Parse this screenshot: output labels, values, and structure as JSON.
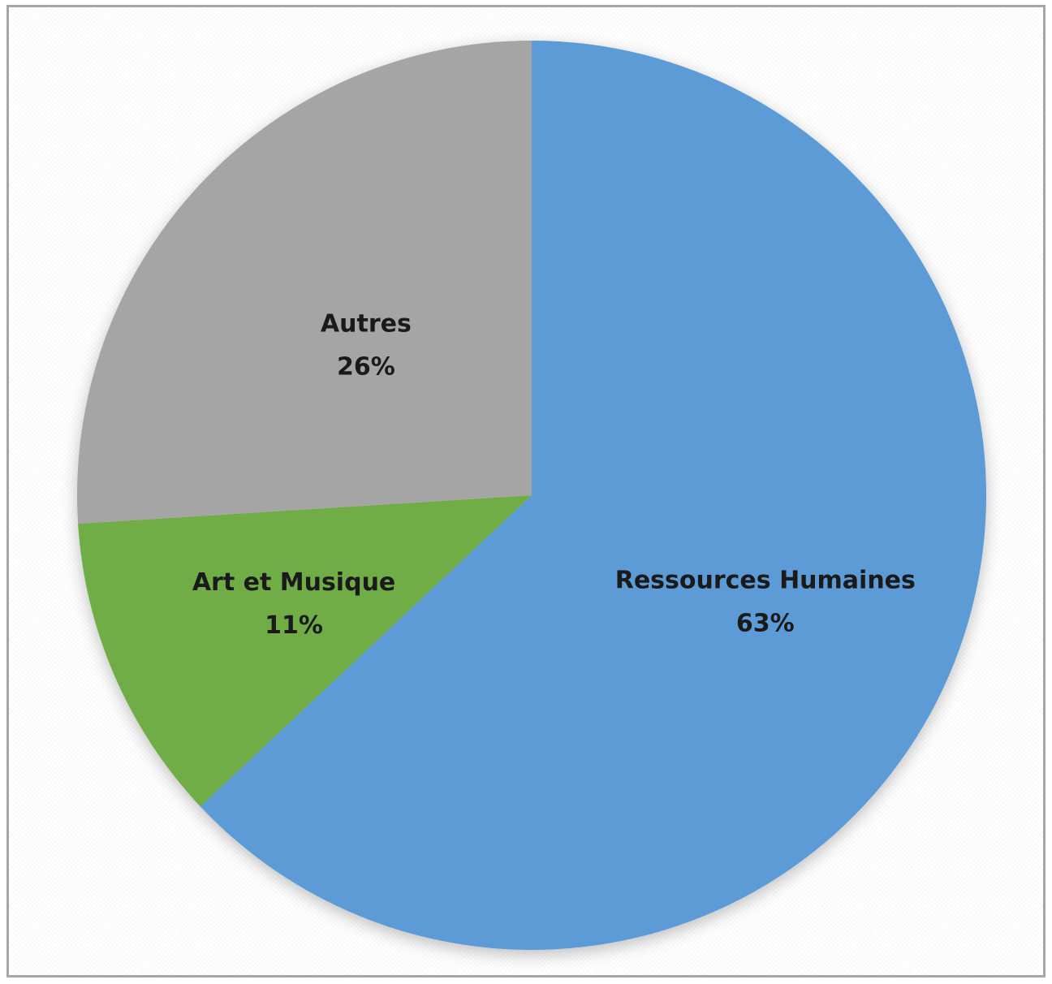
{
  "chart_data": {
    "type": "pie",
    "start_angle_deg": 0,
    "direction": "clockwise",
    "slices": [
      {
        "label": "Ressources Humaines",
        "value": 63,
        "value_label": "63%",
        "color": "#5b9bd5"
      },
      {
        "label": "Art et Musique",
        "value": 11,
        "value_label": "11%",
        "color": "#70ad47"
      },
      {
        "label": "Autres",
        "value": 26,
        "value_label": "26%",
        "color": "#a5a5a5"
      }
    ]
  }
}
